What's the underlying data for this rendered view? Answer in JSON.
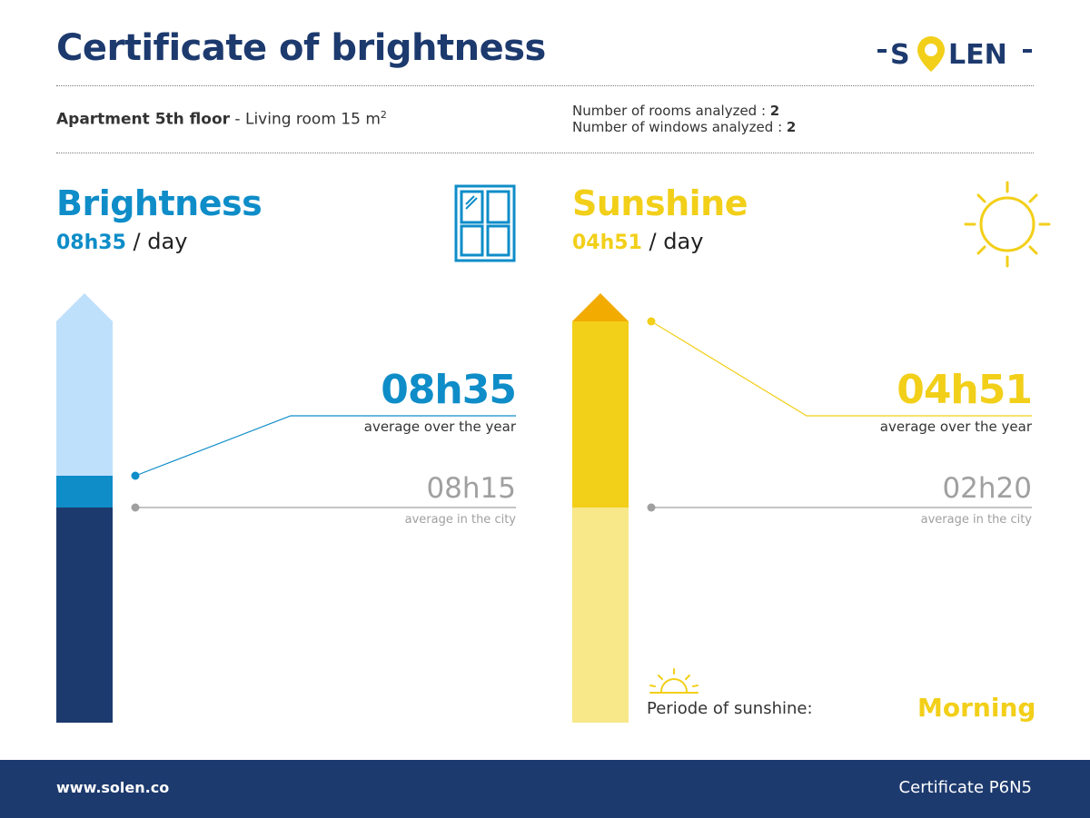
{
  "header": {
    "title": "Certificate of brightness",
    "logo_text": "-SOLEN-"
  },
  "info": {
    "apartment_bold": "Apartment 5th floor",
    "apartment_rest": " - Living room 15 m",
    "apartment_unit_sup": "2",
    "rooms_label": "Number of rooms analyzed : ",
    "rooms_value": "2",
    "windows_label": "Number of windows analyzed : ",
    "windows_value": "2"
  },
  "brightness": {
    "title": "Brightness",
    "per_day_value": "08h35",
    "per_day_unit": " / day",
    "year_value": "08h35",
    "year_label": "average over the year",
    "city_value": "08h15",
    "city_label": "average in the city",
    "icon": "window-icon",
    "colors": {
      "accent": "#0e8dc8",
      "bar_light": "#bfe0fb",
      "bar_dark": "#1d3a6e"
    },
    "bar": {
      "own_fraction": 0.638,
      "city_fraction": 0.55
    }
  },
  "sunshine": {
    "title": "Sunshine",
    "per_day_value": "04h51",
    "per_day_unit": " / day",
    "year_value": "04h51",
    "year_label": "average over the year",
    "city_value": "02h20",
    "city_label": "average in the city",
    "icon": "sun-icon",
    "period_label": "Periode of sunshine:",
    "period_value": "Morning",
    "period_icon": "sunrise-icon",
    "colors": {
      "accent": "#f2cf19",
      "bar_light": "#f8e88a",
      "arrow": "#f2ab00"
    }
  },
  "footer": {
    "url": "www.solen.co",
    "certificate": "Certificate P6N5"
  }
}
